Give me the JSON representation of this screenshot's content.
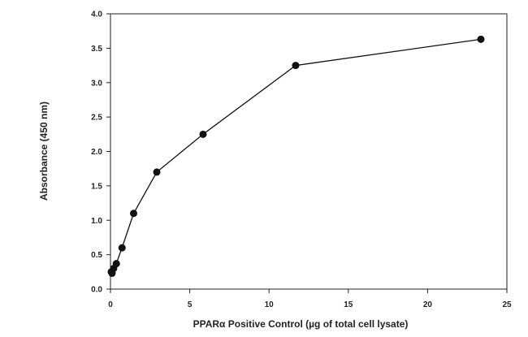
{
  "chart_data": {
    "type": "line",
    "title": "",
    "xlabel": "PPARα Positive Control (µg of total cell lysate)",
    "ylabel": "Absorbance (450 nm)",
    "xlim": [
      0,
      25
    ],
    "ylim": [
      0,
      4.0
    ],
    "xticks": [
      "0",
      "5",
      "10",
      "15",
      "20",
      "25"
    ],
    "yticks": [
      "0.0",
      "0.5",
      "1.0",
      "1.5",
      "2.0",
      "2.5",
      "3.0",
      "3.5",
      "4.0"
    ],
    "grid": false,
    "series": [
      {
        "x": [
          0.05,
          0.1,
          0.2,
          0.37,
          0.73,
          1.46,
          2.92,
          5.84,
          11.68,
          23.36
        ],
        "y": [
          0.25,
          0.23,
          0.3,
          0.37,
          0.6,
          1.1,
          1.7,
          2.25,
          3.25,
          3.63
        ]
      }
    ],
    "colors": {
      "line": "#111111",
      "marker": "#111111",
      "axis": "#222222"
    }
  }
}
